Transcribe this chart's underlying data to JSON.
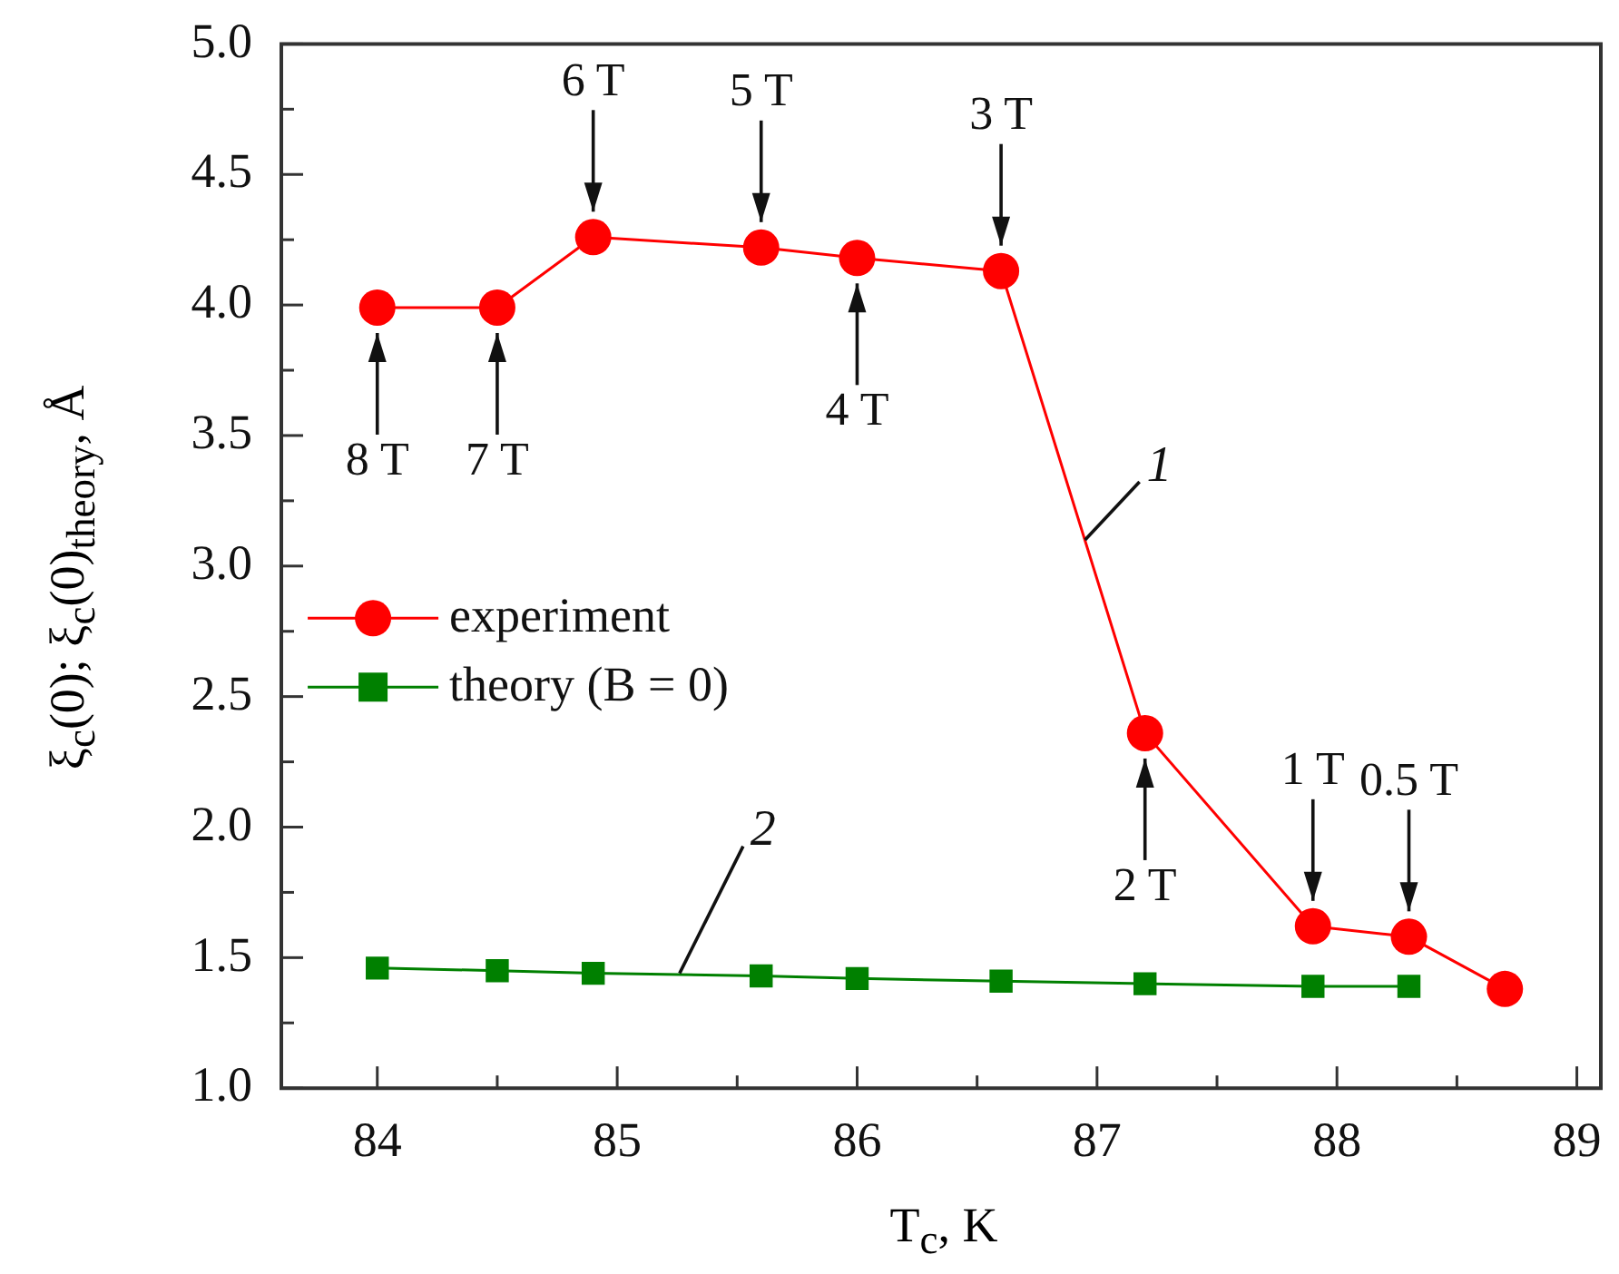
{
  "chart_data": {
    "type": "line",
    "xlabel": "T$_{c}$, K",
    "ylabel": "ξ$_{c}$(0); ξ$_{c}$(0)$_{theory}$, Å",
    "x": [
      84,
      84.5,
      84.9,
      85.6,
      86,
      86.6,
      87.2,
      87.9,
      88.3,
      88.7
    ],
    "series": [
      {
        "name": "theory (B = 0)",
        "color": "#008000",
        "marker": "square",
        "values": [
          1.46,
          1.45,
          1.44,
          1.43,
          1.42,
          1.41,
          1.4,
          1.39,
          1.39,
          null
        ]
      },
      {
        "name": "experiment",
        "color": "#ff0000",
        "marker": "circle",
        "values": [
          3.99,
          3.99,
          4.26,
          4.22,
          4.18,
          4.13,
          2.36,
          1.62,
          1.58,
          1.38
        ]
      }
    ],
    "xlim": [
      83.6,
      89.1
    ],
    "xticks": [
      84,
      {
        "value": 84.5,
        "label": null
      },
      85,
      {
        "value": 85.5,
        "label": null
      },
      86,
      {
        "value": 86.5,
        "label": null
      },
      87,
      {
        "value": 87.5,
        "label": null
      },
      88,
      {
        "value": 88.5,
        "label": null
      },
      89
    ],
    "ylim": [
      1,
      5
    ],
    "yticks": [
      {
        "value": 1,
        "label": "1.0"
      },
      {
        "value": 1.25,
        "label": null
      },
      {
        "value": 1.5,
        "label": "1.5"
      },
      {
        "value": 1.75,
        "label": null
      },
      {
        "value": 2,
        "label": "2.0"
      },
      {
        "value": 2.25,
        "label": null
      },
      {
        "value": 2.5,
        "label": "2.5"
      },
      {
        "value": 2.75,
        "label": null
      },
      {
        "value": 3,
        "label": "3.0"
      },
      {
        "value": 3.25,
        "label": null
      },
      {
        "value": 3.5,
        "label": "3.5"
      },
      {
        "value": 3.75,
        "label": null
      },
      {
        "value": 4,
        "label": "4.0"
      },
      {
        "value": 4.25,
        "label": null
      },
      {
        "value": 4.5,
        "label": "4.5"
      },
      {
        "value": 4.75,
        "label": null
      },
      {
        "value": 5,
        "label": "5.0"
      }
    ],
    "grid": false,
    "legend": "left",
    "line_style": "solid",
    "annotations": [
      {
        "text": "8 T",
        "x": 84,
        "y": 3.99
      },
      {
        "text": "7 T",
        "x": 84.5,
        "y": 3.99
      },
      {
        "text": "6 T",
        "x": 84.9,
        "y": 4.26
      },
      {
        "text": "5 T",
        "x": 85.6,
        "y": 4.22
      },
      {
        "text": "4 T",
        "x": 86,
        "y": 4.18
      },
      {
        "text": "3 T",
        "x": 86.6,
        "y": 4.13
      },
      {
        "text": "2 T",
        "x": 87.2,
        "y": 2.36
      },
      {
        "text": "1 T",
        "x": 87.9,
        "y": 1.62
      },
      {
        "text": "0.5 T",
        "x": 88.3,
        "y": 1.58
      },
      {
        "text": "1",
        "x": 86.95,
        "y": 3.1
      },
      {
        "text": "2",
        "x": 85.26,
        "y": 1.44
      }
    ]
  }
}
